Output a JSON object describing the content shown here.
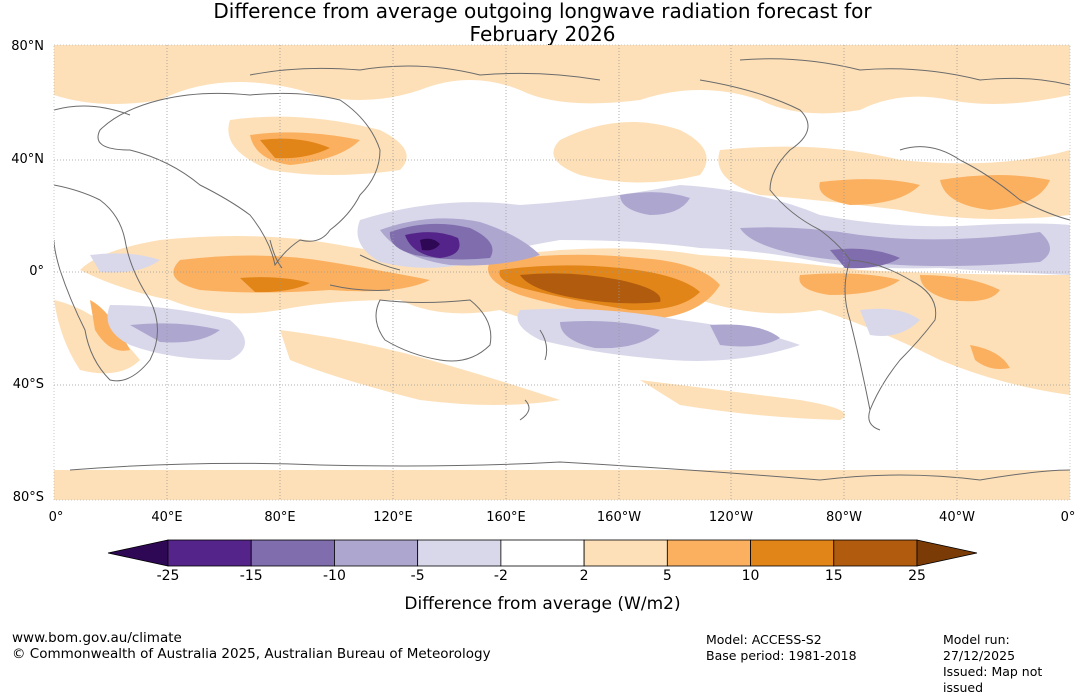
{
  "title_line1": "Difference from average outgoing longwave radiation forecast for",
  "title_line2": "February 2026",
  "lat_labels": [
    "80°N",
    "40°N",
    "0°",
    "40°S",
    "80°S"
  ],
  "lon_labels": [
    "0°",
    "40°E",
    "80°E",
    "120°E",
    "160°E",
    "160°W",
    "120°W",
    "80°W",
    "40°W",
    "0°"
  ],
  "colorbar": {
    "ticks": [
      "-25",
      "-15",
      "-10",
      "-5",
      "-2",
      "2",
      "5",
      "10",
      "15",
      "25"
    ],
    "colors": [
      "#2e0854",
      "#55248a",
      "#7f6dad",
      "#ada6cf",
      "#d9d8ea",
      "#ffffff",
      "#fde0b8",
      "#fbb060",
      "#e18518",
      "#b05b0e",
      "#7a3b07"
    ],
    "label": "Difference from average (W/m2)"
  },
  "footer": {
    "website": "www.bom.gov.au/climate",
    "copyright": "© Commonwealth of Australia 2025, Australian Bureau of Meteorology",
    "model": "Model: ACCESS-S2",
    "base_period": "Base period: 1981-2018",
    "model_run": "Model run: 27/12/2025",
    "issued": "Issued: Map not issued"
  }
}
